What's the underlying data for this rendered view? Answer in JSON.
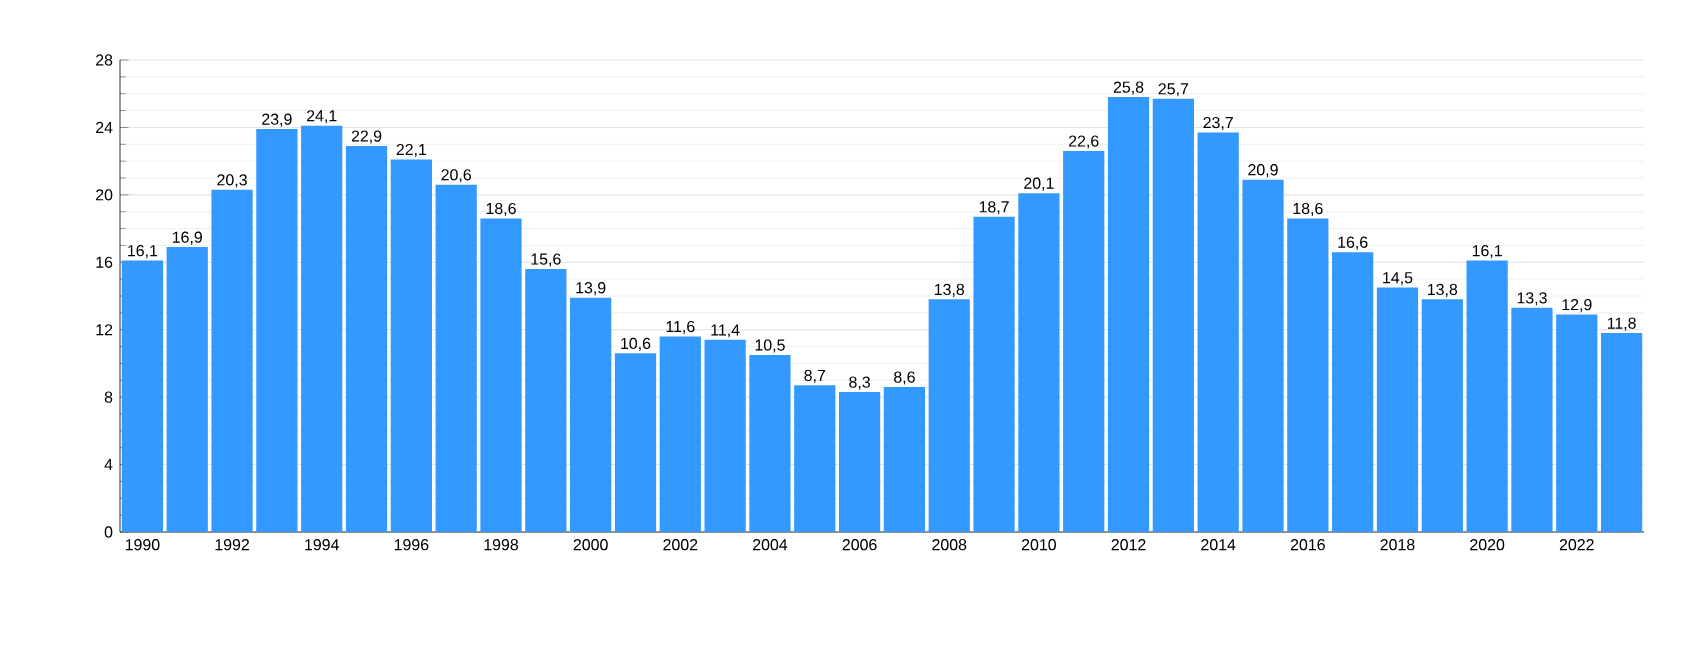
{
  "chart_data": {
    "type": "bar",
    "categories": [
      "1990",
      null,
      "1992",
      null,
      "1994",
      null,
      "1996",
      null,
      "1998",
      null,
      "2000",
      null,
      "2002",
      null,
      "2004",
      null,
      "2006",
      null,
      "2008",
      null,
      "2010",
      null,
      "2012",
      null,
      "2014",
      null,
      "2016",
      null,
      "2018",
      null,
      "2020",
      null,
      "2022",
      null
    ],
    "values": [
      16.1,
      16.9,
      20.3,
      23.9,
      24.1,
      22.9,
      22.1,
      20.6,
      18.6,
      15.6,
      13.9,
      10.6,
      11.6,
      11.4,
      10.5,
      8.7,
      8.3,
      8.6,
      13.8,
      18.7,
      20.1,
      22.6,
      25.8,
      25.7,
      23.7,
      20.9,
      18.6,
      16.6,
      14.5,
      13.8,
      16.1,
      13.3,
      12.9,
      11.8
    ],
    "value_labels": [
      "16,1",
      "16,9",
      "20,3",
      "23,9",
      "24,1",
      "22,9",
      "22,1",
      "20,6",
      "18,6",
      "15,6",
      "13,9",
      "10,6",
      "11,6",
      "11,4",
      "10,5",
      "8,7",
      "8,3",
      "8,6",
      "13,8",
      "18,7",
      "20,1",
      "22,6",
      "25,8",
      "25,7",
      "23,7",
      "20,9",
      "18,6",
      "16,6",
      "14,5",
      "13,8",
      "16,1",
      "13,3",
      "12,9",
      "11,8"
    ],
    "color": "#3399ff",
    "ylim": [
      0,
      28
    ],
    "yticks": [
      0,
      4,
      8,
      12,
      16,
      20,
      24,
      28
    ],
    "grid": "y"
  }
}
